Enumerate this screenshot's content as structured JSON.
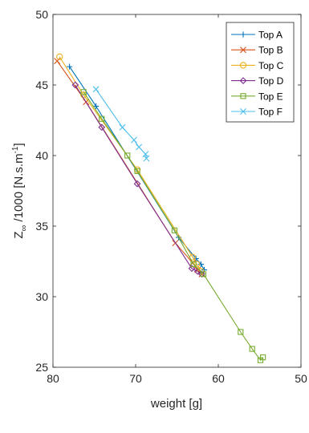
{
  "chart_data": {
    "type": "line",
    "xlabel": "weight [g]",
    "ylabel": "Z∞ /1000 [N.s.m⁻¹]",
    "ylabel_parts": {
      "main": "Z",
      "sub": "∞",
      "rest": " /1000 [N.s.m",
      "sup": "-1",
      "close": "]"
    },
    "xlim": [
      50,
      80
    ],
    "x_reversed": true,
    "ylim": [
      25,
      50
    ],
    "xticks": [
      "80",
      "70",
      "60",
      "50"
    ],
    "xtick_values": [
      80,
      70,
      60,
      50
    ],
    "yticks": [
      "25",
      "30",
      "35",
      "40",
      "45",
      "50"
    ],
    "ytick_values": [
      25,
      30,
      35,
      40,
      45,
      50
    ],
    "grid": false,
    "legend_position": "top-right",
    "series": [
      {
        "name": "Top A",
        "color": "#0072BD",
        "marker": "plus",
        "points": [
          [
            78.0,
            46.3
          ],
          [
            74.8,
            43.5
          ],
          [
            64.8,
            34.2
          ],
          [
            62.7,
            32.7
          ],
          [
            62.1,
            32.3
          ],
          [
            61.7,
            31.9
          ]
        ]
      },
      {
        "name": "Top B",
        "color": "#D95319",
        "marker": "x",
        "points": [
          [
            79.5,
            46.7
          ],
          [
            76.0,
            43.8
          ],
          [
            65.2,
            33.8
          ],
          [
            63.1,
            32.4
          ],
          [
            62.5,
            31.9
          ],
          [
            62.0,
            31.6
          ]
        ]
      },
      {
        "name": "Top C",
        "color": "#EDB120",
        "marker": "circle",
        "points": [
          [
            79.2,
            47.0
          ],
          [
            76.3,
            44.3
          ],
          [
            69.8,
            39.0
          ],
          [
            63.1,
            32.8
          ],
          [
            62.6,
            32.3
          ],
          [
            62.1,
            31.8
          ]
        ]
      },
      {
        "name": "Top D",
        "color": "#7E2F8E",
        "marker": "diamond",
        "points": [
          [
            77.3,
            45.0
          ],
          [
            74.1,
            42.0
          ],
          [
            69.8,
            38.0
          ],
          [
            63.2,
            32.0
          ],
          [
            62.5,
            31.8
          ],
          [
            62.0,
            31.6
          ]
        ]
      },
      {
        "name": "Top E",
        "color": "#77AC30",
        "marker": "square",
        "points": [
          [
            76.3,
            44.5
          ],
          [
            74.1,
            42.6
          ],
          [
            71.0,
            40.0
          ],
          [
            69.8,
            38.9
          ],
          [
            65.3,
            34.7
          ],
          [
            63.0,
            32.3
          ],
          [
            61.8,
            31.6
          ],
          [
            57.3,
            27.5
          ],
          [
            55.9,
            26.3
          ],
          [
            54.9,
            25.5
          ],
          [
            54.6,
            25.7
          ]
        ]
      },
      {
        "name": "Top F",
        "color": "#4DBEEE",
        "marker": "x",
        "points": [
          [
            74.8,
            44.7
          ],
          [
            71.6,
            42.0
          ],
          [
            70.2,
            41.1
          ],
          [
            69.6,
            40.6
          ],
          [
            68.8,
            40.1
          ],
          [
            68.7,
            39.8
          ]
        ]
      }
    ]
  }
}
